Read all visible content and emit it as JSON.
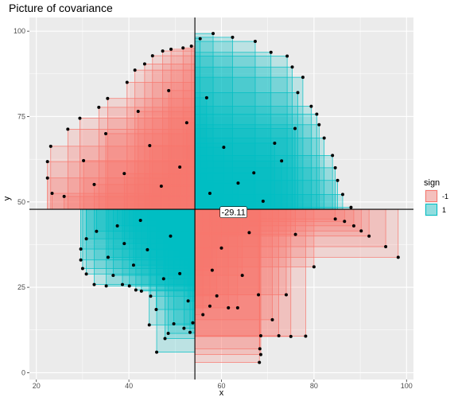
{
  "chart_data": {
    "type": "scatter",
    "title": "Picture of covariance",
    "xlabel": "x",
    "ylabel": "y",
    "xlim": [
      18.5,
      101.5
    ],
    "ylim": [
      -2,
      104
    ],
    "x_ticks": [
      20,
      40,
      60,
      80,
      100
    ],
    "y_ticks": [
      0,
      25,
      50,
      75,
      100
    ],
    "grid": true,
    "mean_x": 54.26,
    "mean_y": 47.83,
    "annotation": "-29.11",
    "annotation_position": [
      62.6,
      47.0
    ],
    "legend": {
      "title": "sign",
      "placement": "right",
      "entries": [
        {
          "label": "-1",
          "color": "#F8766D"
        },
        {
          "label": "1",
          "color": "#00BFC4"
        }
      ]
    },
    "points": [
      {
        "x": 55.4,
        "y": 97.8
      },
      {
        "x": 58.2,
        "y": 99.3
      },
      {
        "x": 62.4,
        "y": 98.2
      },
      {
        "x": 67.3,
        "y": 97.0
      },
      {
        "x": 70.7,
        "y": 93.8
      },
      {
        "x": 74.2,
        "y": 92.7
      },
      {
        "x": 75.3,
        "y": 89.5
      },
      {
        "x": 77.6,
        "y": 86.5
      },
      {
        "x": 76.5,
        "y": 82.0
      },
      {
        "x": 79.4,
        "y": 78.0
      },
      {
        "x": 80.6,
        "y": 75.7
      },
      {
        "x": 81.1,
        "y": 72.6
      },
      {
        "x": 82.2,
        "y": 68.7
      },
      {
        "x": 84.0,
        "y": 63.6
      },
      {
        "x": 84.6,
        "y": 60.0
      },
      {
        "x": 85.1,
        "y": 56.3
      },
      {
        "x": 86.2,
        "y": 52.2
      },
      {
        "x": 88.0,
        "y": 48.4
      },
      {
        "x": 75.9,
        "y": 71.5
      },
      {
        "x": 73.0,
        "y": 62.0
      },
      {
        "x": 67.0,
        "y": 58.5
      },
      {
        "x": 60.5,
        "y": 66.0
      },
      {
        "x": 56.8,
        "y": 80.5
      },
      {
        "x": 57.5,
        "y": 52.5
      },
      {
        "x": 63.6,
        "y": 55.5
      },
      {
        "x": 69.0,
        "y": 50.2
      },
      {
        "x": 71.5,
        "y": 67.2
      },
      {
        "x": 23.1,
        "y": 66.3
      },
      {
        "x": 22.4,
        "y": 61.8
      },
      {
        "x": 22.4,
        "y": 57.0
      },
      {
        "x": 23.4,
        "y": 52.5
      },
      {
        "x": 26.8,
        "y": 71.3
      },
      {
        "x": 29.4,
        "y": 74.5
      },
      {
        "x": 33.5,
        "y": 77.7
      },
      {
        "x": 35.4,
        "y": 80.3
      },
      {
        "x": 39.6,
        "y": 85.0
      },
      {
        "x": 41.3,
        "y": 88.6
      },
      {
        "x": 43.4,
        "y": 90.4
      },
      {
        "x": 45.1,
        "y": 92.8
      },
      {
        "x": 47.3,
        "y": 94.2
      },
      {
        "x": 49.1,
        "y": 94.7
      },
      {
        "x": 51.7,
        "y": 95.1
      },
      {
        "x": 53.5,
        "y": 95.6
      },
      {
        "x": 30.2,
        "y": 62.1
      },
      {
        "x": 35.0,
        "y": 70.0
      },
      {
        "x": 42.0,
        "y": 76.5
      },
      {
        "x": 48.6,
        "y": 82.6
      },
      {
        "x": 44.5,
        "y": 66.5
      },
      {
        "x": 39.0,
        "y": 58.3
      },
      {
        "x": 51.0,
        "y": 60.2
      },
      {
        "x": 26.0,
        "y": 51.6
      },
      {
        "x": 32.5,
        "y": 55.1
      },
      {
        "x": 47.0,
        "y": 54.6
      },
      {
        "x": 52.5,
        "y": 73.2
      },
      {
        "x": 30.0,
        "y": 30.5
      },
      {
        "x": 29.6,
        "y": 33.0
      },
      {
        "x": 29.6,
        "y": 36.2
      },
      {
        "x": 30.8,
        "y": 39.2
      },
      {
        "x": 30.8,
        "y": 28.9
      },
      {
        "x": 32.5,
        "y": 25.8
      },
      {
        "x": 35.1,
        "y": 25.4
      },
      {
        "x": 36.6,
        "y": 28.5
      },
      {
        "x": 38.6,
        "y": 25.8
      },
      {
        "x": 40.1,
        "y": 25.4
      },
      {
        "x": 41.5,
        "y": 24.2
      },
      {
        "x": 42.7,
        "y": 23.9
      },
      {
        "x": 44.7,
        "y": 22.4
      },
      {
        "x": 45.9,
        "y": 18.5
      },
      {
        "x": 44.4,
        "y": 14.0
      },
      {
        "x": 46.0,
        "y": 6.0
      },
      {
        "x": 47.8,
        "y": 10.0
      },
      {
        "x": 48.5,
        "y": 11.5
      },
      {
        "x": 49.7,
        "y": 14.3
      },
      {
        "x": 51.9,
        "y": 13.0
      },
      {
        "x": 53.2,
        "y": 11.8
      },
      {
        "x": 53.8,
        "y": 14.6
      },
      {
        "x": 33.0,
        "y": 41.4
      },
      {
        "x": 37.5,
        "y": 43.0
      },
      {
        "x": 41.0,
        "y": 31.5
      },
      {
        "x": 44.0,
        "y": 36.0
      },
      {
        "x": 49.0,
        "y": 40.0
      },
      {
        "x": 51.0,
        "y": 29.0
      },
      {
        "x": 52.8,
        "y": 21.0
      },
      {
        "x": 39.0,
        "y": 37.8
      },
      {
        "x": 47.5,
        "y": 27.5
      },
      {
        "x": 42.5,
        "y": 44.6
      },
      {
        "x": 35.5,
        "y": 33.8
      },
      {
        "x": 98.2,
        "y": 33.8
      },
      {
        "x": 95.5,
        "y": 36.9
      },
      {
        "x": 91.9,
        "y": 40.0
      },
      {
        "x": 90.2,
        "y": 41.5
      },
      {
        "x": 88.6,
        "y": 43.0
      },
      {
        "x": 86.6,
        "y": 44.3
      },
      {
        "x": 84.6,
        "y": 45.0
      },
      {
        "x": 78.2,
        "y": 10.7
      },
      {
        "x": 75.0,
        "y": 10.6
      },
      {
        "x": 72.4,
        "y": 10.8
      },
      {
        "x": 68.5,
        "y": 10.8
      },
      {
        "x": 68.3,
        "y": 7.0
      },
      {
        "x": 68.5,
        "y": 5.3
      },
      {
        "x": 68.2,
        "y": 3.0
      },
      {
        "x": 74.0,
        "y": 22.8
      },
      {
        "x": 68.0,
        "y": 22.8
      },
      {
        "x": 63.5,
        "y": 19.0
      },
      {
        "x": 61.5,
        "y": 19.0
      },
      {
        "x": 59.0,
        "y": 22.5
      },
      {
        "x": 57.5,
        "y": 19.5
      },
      {
        "x": 56.0,
        "y": 17.0
      },
      {
        "x": 64.5,
        "y": 28.5
      },
      {
        "x": 71.0,
        "y": 15.5
      },
      {
        "x": 80.0,
        "y": 31.0
      },
      {
        "x": 60.0,
        "y": 36.5
      },
      {
        "x": 66.0,
        "y": 41.0
      },
      {
        "x": 76.0,
        "y": 40.5
      },
      {
        "x": 58.0,
        "y": 30.0
      }
    ]
  }
}
